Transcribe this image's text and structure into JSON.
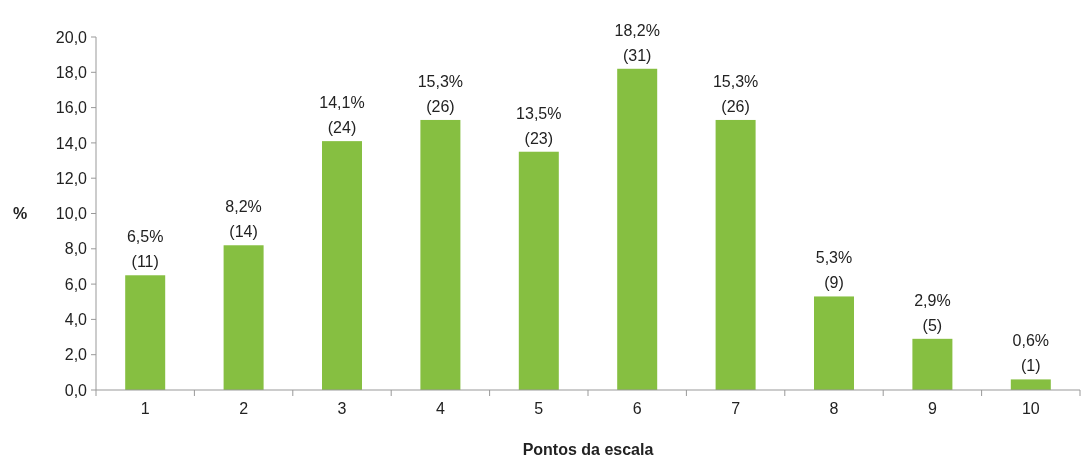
{
  "chart_data": {
    "type": "bar",
    "xlabel": "Pontos da escala",
    "ylabel": "%",
    "categories": [
      "1",
      "2",
      "3",
      "4",
      "5",
      "6",
      "7",
      "8",
      "9",
      "10"
    ],
    "values": [
      6.5,
      8.2,
      14.1,
      15.3,
      13.5,
      18.2,
      15.3,
      5.3,
      2.9,
      0.6
    ],
    "value_labels": [
      "6,5%\n(11)",
      "8,2%\n(14)",
      "14,1%\n(24)",
      "15,3%\n(26)",
      "13,5%\n(23)",
      "18,2%\n(31)",
      "15,3%\n(26)",
      "5,3%\n(9)",
      "2,9%\n(5)",
      "0,6%\n(1)"
    ],
    "color": "#86bf41",
    "ylim": [
      0,
      20
    ],
    "yticks": [
      {
        "value": 0,
        "label": "0,0"
      },
      {
        "value": 2,
        "label": "2,0"
      },
      {
        "value": 4,
        "label": "4,0"
      },
      {
        "value": 6,
        "label": "6,0"
      },
      {
        "value": 8,
        "label": "8,0"
      },
      {
        "value": 10,
        "label": "10,0"
      },
      {
        "value": 12,
        "label": "12,0"
      },
      {
        "value": 14,
        "label": "14,0"
      },
      {
        "value": 16,
        "label": "16,0"
      },
      {
        "value": 18,
        "label": "18,0"
      },
      {
        "value": 20,
        "label": "20,0"
      }
    ],
    "grid": false
  }
}
